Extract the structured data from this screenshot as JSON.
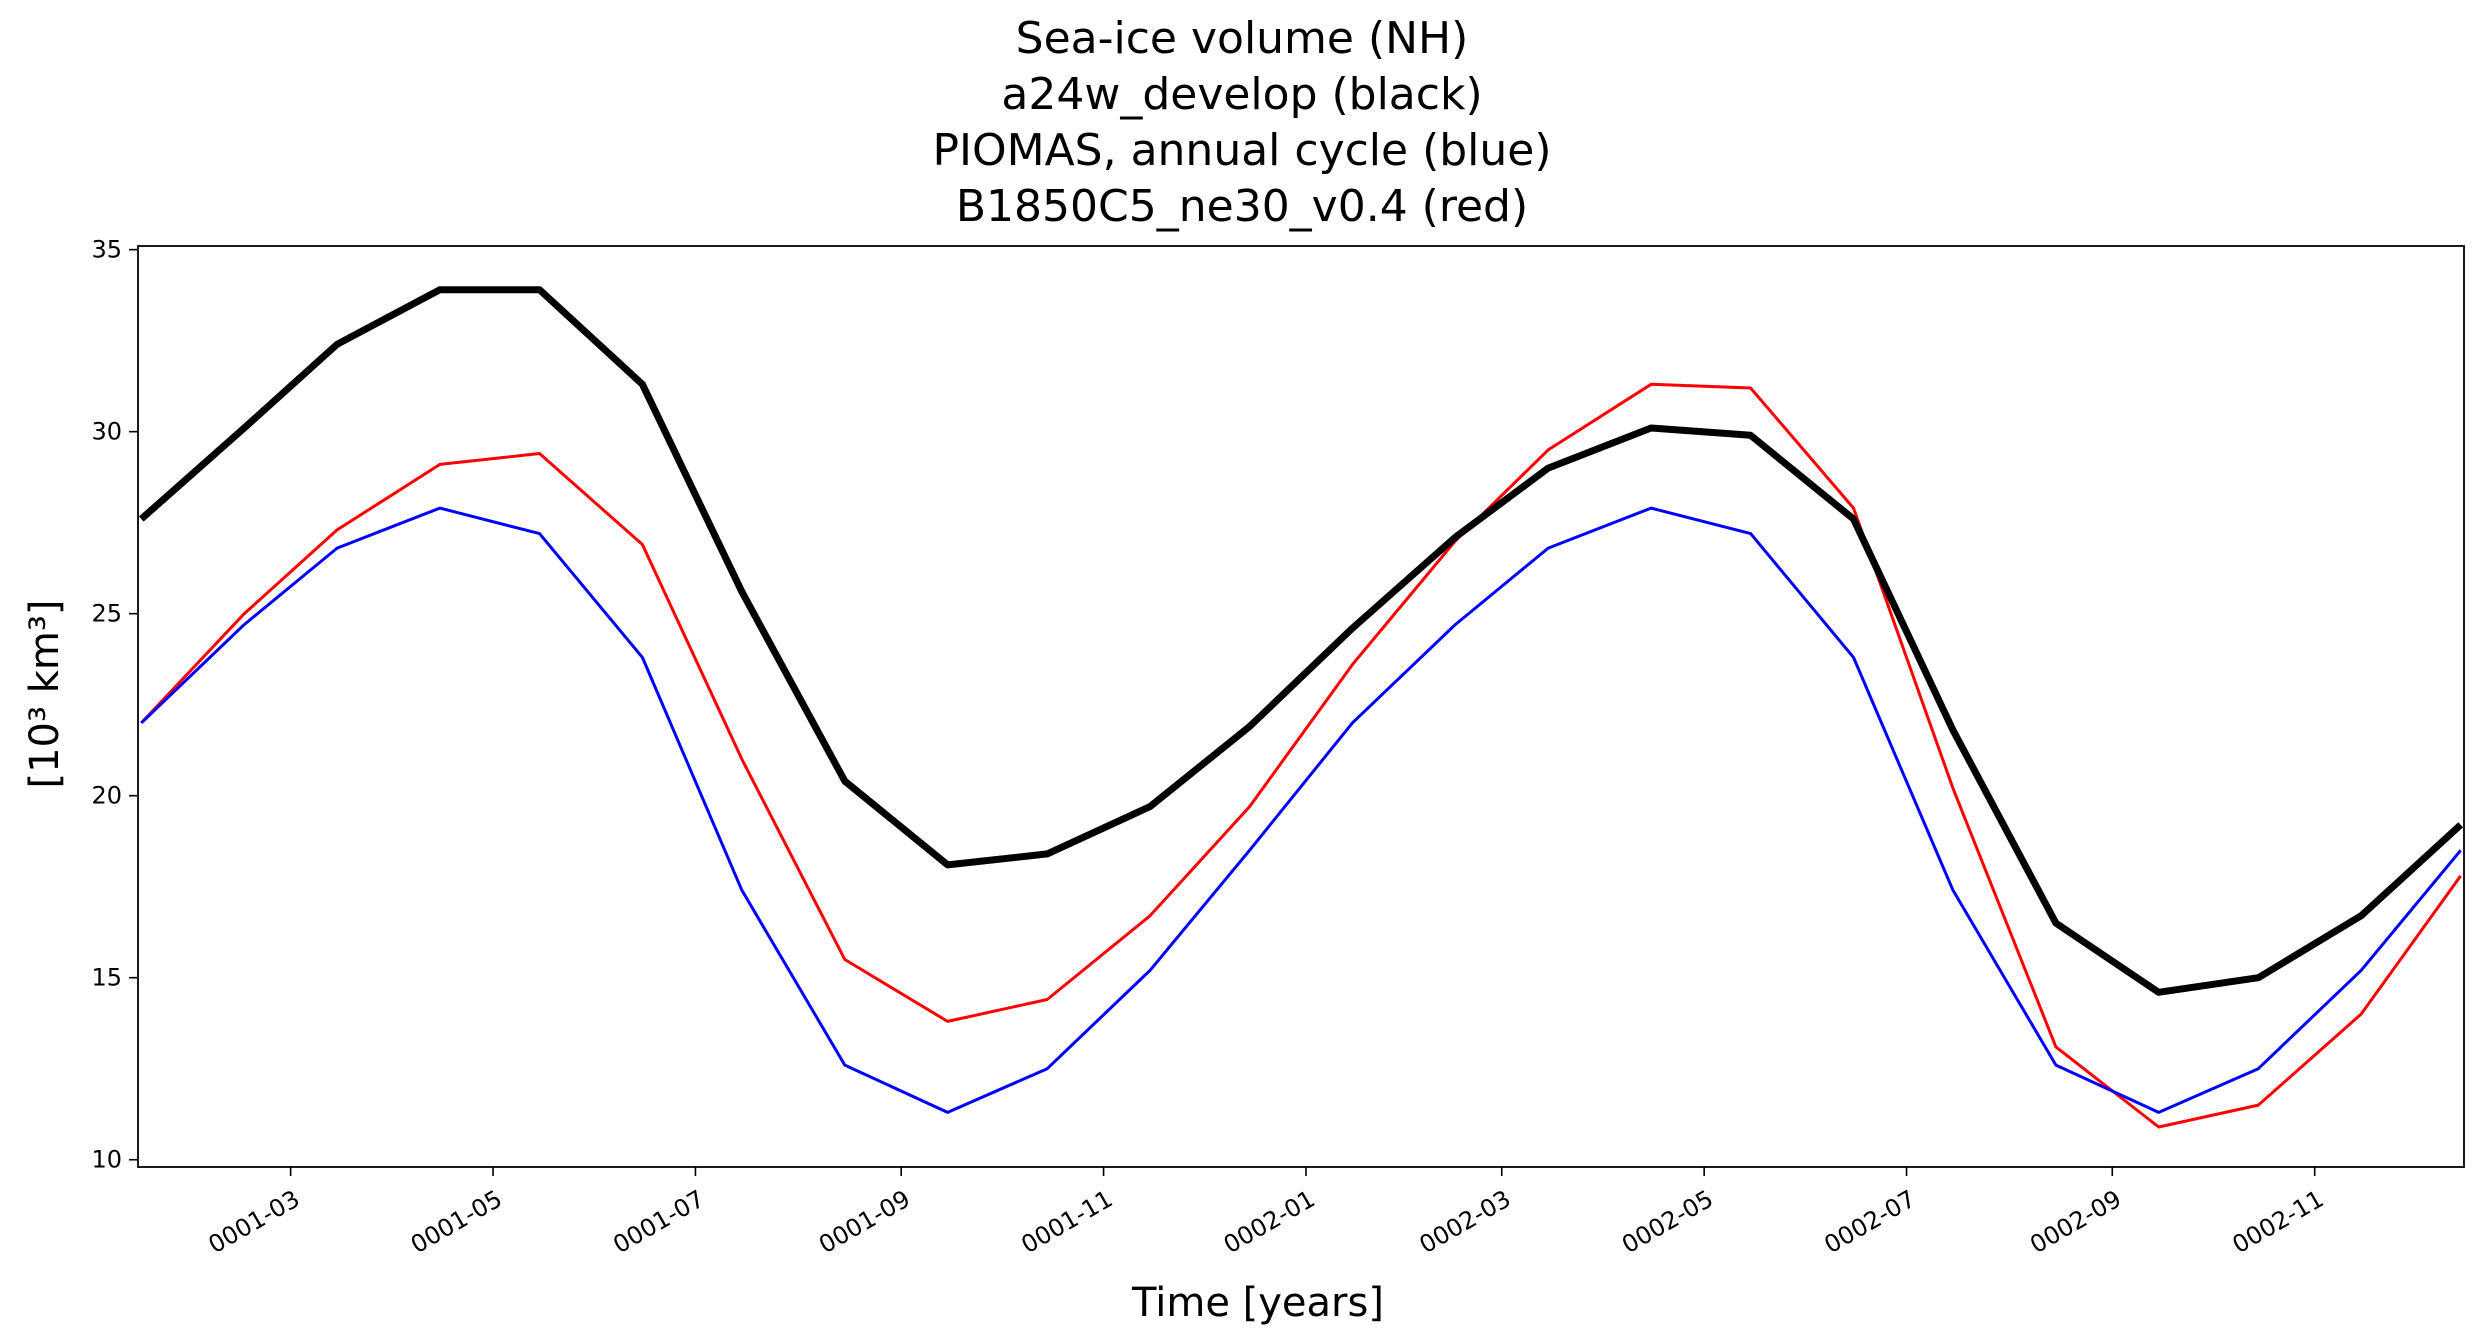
{
  "chart_data": {
    "type": "line",
    "title_lines": [
      "Sea-ice volume (NH)",
      "a24w_develop (black)",
      "PIOMAS, annual cycle (blue)",
      "B1850C5_ne30_v0.4 (red)"
    ],
    "xlabel": "Time [years]",
    "ylabel": "[10³ km³]",
    "x": [
      "0001-01-15",
      "0001-02-15",
      "0001-03-15",
      "0001-04-15",
      "0001-05-15",
      "0001-06-15",
      "0001-07-15",
      "0001-08-15",
      "0001-09-15",
      "0001-10-15",
      "0001-11-15",
      "0001-12-15",
      "0002-01-15",
      "0002-02-15",
      "0002-03-15",
      "0002-04-15",
      "0002-05-15",
      "0002-06-15",
      "0002-07-15",
      "0002-08-15",
      "0002-09-15",
      "0002-10-15",
      "0002-11-15",
      "0002-12-15"
    ],
    "x_days": [
      14,
      45,
      73,
      104,
      134,
      165,
      195,
      226,
      257,
      287,
      318,
      348,
      379,
      410,
      438,
      469,
      499,
      530,
      560,
      591,
      622,
      652,
      683,
      713
    ],
    "xlim_days": [
      13,
      714
    ],
    "xticks": [
      {
        "label": "0001-03",
        "day": 59
      },
      {
        "label": "0001-05",
        "day": 120
      },
      {
        "label": "0001-07",
        "day": 181
      },
      {
        "label": "0001-09",
        "day": 243
      },
      {
        "label": "0001-11",
        "day": 304
      },
      {
        "label": "0002-01",
        "day": 365
      },
      {
        "label": "0002-03",
        "day": 424
      },
      {
        "label": "0002-05",
        "day": 485
      },
      {
        "label": "0002-07",
        "day": 546
      },
      {
        "label": "0002-09",
        "day": 608
      },
      {
        "label": "0002-11",
        "day": 669
      }
    ],
    "ylim": [
      9.8,
      35.1
    ],
    "yticks": [
      10,
      15,
      20,
      25,
      30,
      35
    ],
    "series": [
      {
        "name": "B1850C5_ne30_v0.4",
        "color": "#ff0000",
        "width": 3,
        "values": [
          22.0,
          25.0,
          27.3,
          29.1,
          29.4,
          26.9,
          21.0,
          15.5,
          13.8,
          14.4,
          16.7,
          19.7,
          23.6,
          27.0,
          29.5,
          31.3,
          31.2,
          27.9,
          20.2,
          13.1,
          10.9,
          11.5,
          14.0,
          17.8
        ]
      },
      {
        "name": "PIOMAS, annual cycle",
        "color": "#0000ff",
        "width": 3,
        "values": [
          22.0,
          24.7,
          26.8,
          27.9,
          27.2,
          23.8,
          17.4,
          12.6,
          11.3,
          12.5,
          15.2,
          18.5,
          22.0,
          24.7,
          26.8,
          27.9,
          27.2,
          23.8,
          17.4,
          12.6,
          11.3,
          12.5,
          15.2,
          18.5
        ]
      },
      {
        "name": "a24w_develop",
        "color": "#000000",
        "width": 7,
        "values": [
          27.6,
          30.1,
          32.4,
          33.9,
          33.9,
          31.3,
          25.6,
          20.4,
          18.1,
          18.4,
          19.7,
          21.9,
          24.6,
          27.1,
          29.0,
          30.1,
          29.9,
          27.6,
          21.8,
          16.5,
          14.6,
          15.0,
          16.7,
          19.2
        ]
      }
    ]
  }
}
